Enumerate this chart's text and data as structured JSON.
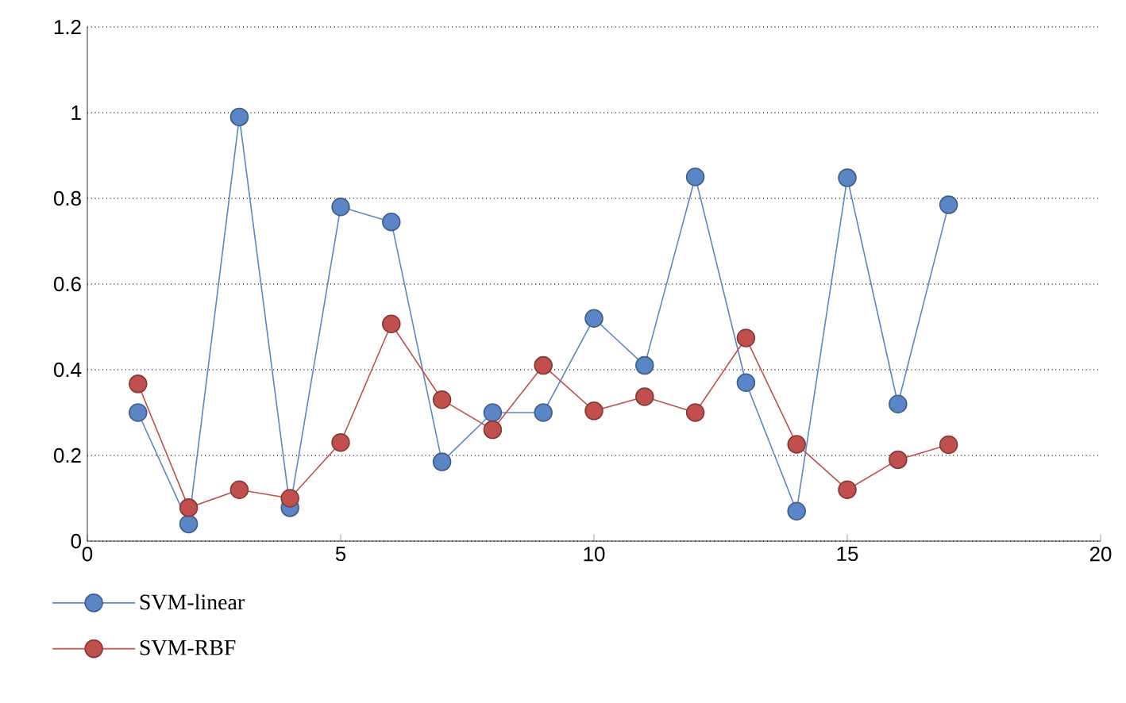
{
  "chart_data": {
    "type": "line",
    "marker": "circle",
    "grid": "y",
    "legend": "bottom left",
    "xlim": [
      0,
      20
    ],
    "xticks": [
      0,
      5,
      10,
      15,
      20
    ],
    "ylim": [
      0,
      1.2
    ],
    "yticks": [
      0,
      0.2,
      0.4,
      0.6,
      0.8,
      1,
      1.2
    ],
    "x": [
      1,
      2,
      3,
      4,
      5,
      6,
      7,
      8,
      9,
      10,
      11,
      12,
      13,
      14,
      15,
      16,
      17
    ],
    "series": [
      {
        "name": "SVM-linear",
        "color": "#5b86c5",
        "values": [
          0.3,
          0.04,
          0.99,
          0.078,
          0.78,
          0.745,
          0.185,
          0.3,
          0.3,
          0.52,
          0.41,
          0.85,
          0.37,
          0.07,
          0.848,
          0.32,
          0.785
        ]
      },
      {
        "name": "SVM-RBF",
        "color": "#c0504d",
        "values": [
          0.367,
          0.078,
          0.12,
          0.1,
          0.23,
          0.507,
          0.33,
          0.26,
          0.41,
          0.304,
          0.337,
          0.3,
          0.474,
          0.226,
          0.12,
          0.19,
          0.225
        ]
      }
    ]
  }
}
